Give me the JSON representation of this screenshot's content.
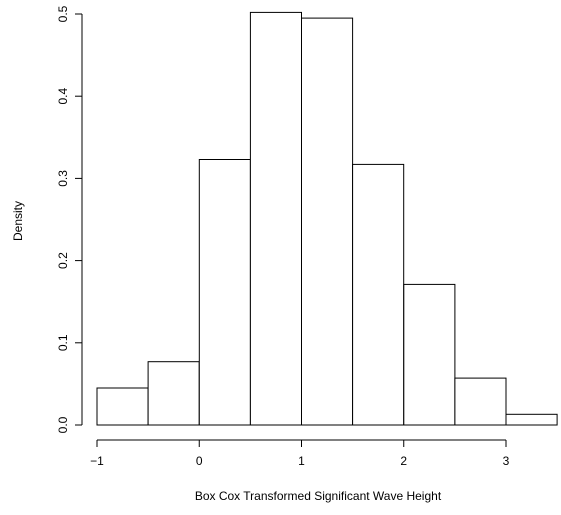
{
  "chart_data": {
    "type": "bar",
    "xlabel": "Box Cox Transformed Significant Wave Height",
    "ylabel": "Density",
    "xlim": [
      -1,
      3.5
    ],
    "ylim": [
      0,
      0.5
    ],
    "x_ticks": [
      -1,
      0,
      1,
      2,
      3
    ],
    "x_tick_labels": [
      "−1",
      "0",
      "1",
      "2",
      "3"
    ],
    "y_ticks": [
      0.0,
      0.1,
      0.2,
      0.3,
      0.4,
      0.5
    ],
    "y_tick_labels": [
      "0.0",
      "0.1",
      "0.2",
      "0.3",
      "0.4",
      "0.5"
    ],
    "bins": [
      {
        "start": -1.0,
        "end": -0.5,
        "value": 0.045
      },
      {
        "start": -0.5,
        "end": 0.0,
        "value": 0.077
      },
      {
        "start": 0.0,
        "end": 0.5,
        "value": 0.323
      },
      {
        "start": 0.5,
        "end": 1.0,
        "value": 0.502
      },
      {
        "start": 1.0,
        "end": 1.5,
        "value": 0.495
      },
      {
        "start": 1.5,
        "end": 2.0,
        "value": 0.317
      },
      {
        "start": 2.0,
        "end": 2.5,
        "value": 0.171
      },
      {
        "start": 2.5,
        "end": 3.0,
        "value": 0.057
      },
      {
        "start": 3.0,
        "end": 3.5,
        "value": 0.013
      }
    ],
    "grid": false
  }
}
